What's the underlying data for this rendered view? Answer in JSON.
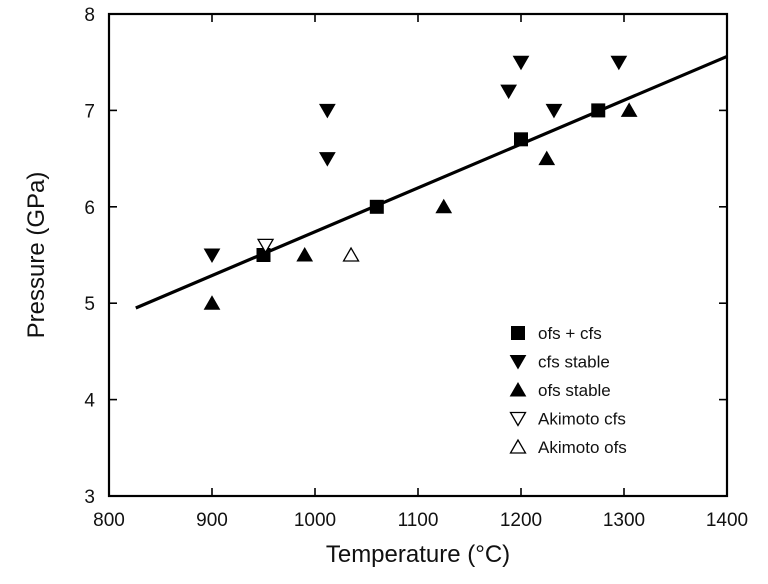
{
  "chart_data": {
    "type": "scatter",
    "xlabel": "Temperature (°C)",
    "ylabel": "Pressure (GPa)",
    "xlim": [
      800,
      1400
    ],
    "ylim": [
      3,
      8
    ],
    "xticks": [
      800,
      900,
      1000,
      1100,
      1200,
      1300,
      1400
    ],
    "yticks": [
      3,
      4,
      5,
      6,
      7,
      8
    ],
    "grid": false,
    "legend_position": "bottom-right",
    "series": [
      {
        "name": "ofs + cfs",
        "marker": "square-filled",
        "points": [
          [
            950,
            5.5
          ],
          [
            1060,
            6.0
          ],
          [
            1200,
            6.7
          ],
          [
            1275,
            7.0
          ]
        ]
      },
      {
        "name": "cfs stable",
        "marker": "triangle-down-filled",
        "points": [
          [
            900,
            5.5
          ],
          [
            1012,
            6.5
          ],
          [
            1012,
            7.0
          ],
          [
            1188,
            7.2
          ],
          [
            1200,
            7.5
          ],
          [
            1232,
            7.0
          ],
          [
            1295,
            7.5
          ]
        ]
      },
      {
        "name": "ofs stable",
        "marker": "triangle-up-filled",
        "points": [
          [
            900,
            5.0
          ],
          [
            990,
            5.5
          ],
          [
            1125,
            6.0
          ],
          [
            1225,
            6.5
          ],
          [
            1305,
            7.0
          ]
        ]
      },
      {
        "name": "Akimoto cfs",
        "marker": "triangle-down-open",
        "points": [
          [
            952,
            5.6
          ]
        ]
      },
      {
        "name": "Akimoto ofs",
        "marker": "triangle-up-open",
        "points": [
          [
            1035,
            5.5
          ]
        ]
      }
    ],
    "fit_line": {
      "x": [
        826,
        1400
      ],
      "y": [
        4.95,
        7.56
      ]
    },
    "colors": {
      "marker": "#000000",
      "line": "#000000",
      "background": "#ffffff"
    }
  }
}
